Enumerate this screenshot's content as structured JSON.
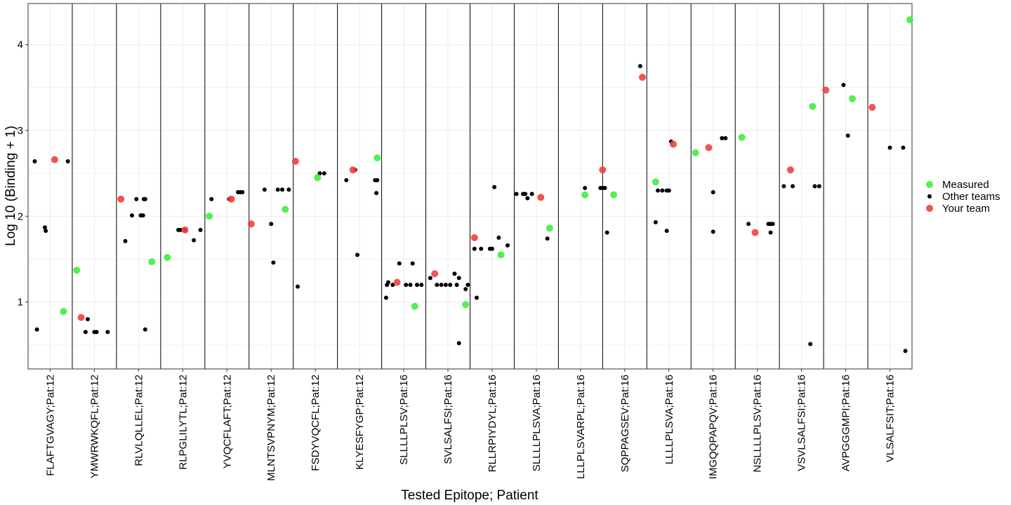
{
  "chart_data": {
    "type": "scatter",
    "xlabel": "Tested Epitope; Patient",
    "ylabel": "Log 10 (Binding + 1)",
    "ylim": [
      0.22,
      4.48
    ],
    "yticks": [
      1,
      2,
      3,
      4
    ],
    "grid": true,
    "legend_position": "right",
    "categories": [
      "FLAFTGVAGY;Pat:12",
      "YMWRWKQFL;Pat:12",
      "RLVLQLLEL;Pat:12",
      "RLPGLILYTL;Pat:12",
      "YVQCFLAFT;Pat:12",
      "MLNTSVPNYM;Pat:12",
      "FSDYVQCFL;Pat:12",
      "KLYESFYGP;Pat:12",
      "SLLLLPLSV;Pat:16",
      "SVLSALFSI;Pat:16",
      "RLLRPIYDYL;Pat:16",
      "SLLLLPLSVA;Pat:16",
      "LLLPLSVARPL;Pat:16",
      "SQPPAGSEV;Pat:16",
      "LLLLPLSVA;Pat:16",
      "IMGQQPAPQV;Pat:16",
      "NSLLLLPLSV;Pat:16",
      "VSVLSALFSI;Pat:16",
      "AVPGGGMPI;Pat:16",
      "VLSALFSIT;Pat:16"
    ],
    "series": [
      {
        "name": "Measured",
        "color": "#3DF03D",
        "points": [
          {
            "cat": 0,
            "dx": 0.3,
            "y": 0.89
          },
          {
            "cat": 1,
            "dx": -0.4,
            "y": 1.37
          },
          {
            "cat": 2,
            "dx": 0.3,
            "y": 1.47
          },
          {
            "cat": 3,
            "dx": -0.35,
            "y": 1.52
          },
          {
            "cat": 4,
            "dx": -0.4,
            "y": 2.0
          },
          {
            "cat": 5,
            "dx": 0.32,
            "y": 2.08
          },
          {
            "cat": 6,
            "dx": 0.05,
            "y": 2.45
          },
          {
            "cat": 7,
            "dx": 0.4,
            "y": 2.68
          },
          {
            "cat": 8,
            "dx": 0.25,
            "y": 0.95
          },
          {
            "cat": 9,
            "dx": 0.4,
            "y": 0.97
          },
          {
            "cat": 10,
            "dx": 0.2,
            "y": 1.55
          },
          {
            "cat": 11,
            "dx": 0.3,
            "y": 1.86
          },
          {
            "cat": 12,
            "dx": 0.1,
            "y": 2.25
          },
          {
            "cat": 13,
            "dx": -0.25,
            "y": 2.25
          },
          {
            "cat": 14,
            "dx": -0.3,
            "y": 2.4
          },
          {
            "cat": 15,
            "dx": -0.4,
            "y": 2.74
          },
          {
            "cat": 16,
            "dx": -0.35,
            "y": 2.92
          },
          {
            "cat": 17,
            "dx": 0.25,
            "y": 3.28
          },
          {
            "cat": 18,
            "dx": 0.15,
            "y": 3.37
          },
          {
            "cat": 19,
            "dx": 0.45,
            "y": 4.29
          }
        ]
      },
      {
        "name": "Other teams",
        "color": "#000000",
        "points": [
          {
            "cat": 0,
            "dx": -0.35,
            "y": 2.64
          },
          {
            "cat": 0,
            "dx": -0.12,
            "y": 1.87
          },
          {
            "cat": 0,
            "dx": -0.1,
            "y": 1.83
          },
          {
            "cat": 0,
            "dx": 0.4,
            "y": 2.64
          },
          {
            "cat": 0,
            "dx": -0.3,
            "y": 0.68
          },
          {
            "cat": 1,
            "dx": -0.2,
            "y": 0.65
          },
          {
            "cat": 1,
            "dx": 0.0,
            "y": 0.65
          },
          {
            "cat": 1,
            "dx": 0.05,
            "y": 0.65
          },
          {
            "cat": 1,
            "dx": -0.15,
            "y": 0.8
          },
          {
            "cat": 1,
            "dx": 0.3,
            "y": 0.65
          },
          {
            "cat": 2,
            "dx": -0.3,
            "y": 1.71
          },
          {
            "cat": 2,
            "dx": -0.15,
            "y": 2.01
          },
          {
            "cat": 2,
            "dx": -0.05,
            "y": 2.2
          },
          {
            "cat": 2,
            "dx": 0.05,
            "y": 2.01
          },
          {
            "cat": 2,
            "dx": 0.1,
            "y": 2.01
          },
          {
            "cat": 2,
            "dx": 0.12,
            "y": 2.2
          },
          {
            "cat": 2,
            "dx": 0.15,
            "y": 2.2
          },
          {
            "cat": 2,
            "dx": 0.15,
            "y": 0.68
          },
          {
            "cat": 3,
            "dx": -0.1,
            "y": 1.84
          },
          {
            "cat": 3,
            "dx": -0.05,
            "y": 1.84
          },
          {
            "cat": 3,
            "dx": 0.05,
            "y": 1.84
          },
          {
            "cat": 3,
            "dx": 0.25,
            "y": 1.72
          },
          {
            "cat": 3,
            "dx": 0.4,
            "y": 1.84
          },
          {
            "cat": 4,
            "dx": -0.35,
            "y": 2.2
          },
          {
            "cat": 4,
            "dx": 0.05,
            "y": 2.2
          },
          {
            "cat": 4,
            "dx": 0.25,
            "y": 2.28
          },
          {
            "cat": 4,
            "dx": 0.3,
            "y": 2.28
          },
          {
            "cat": 4,
            "dx": 0.35,
            "y": 2.28
          },
          {
            "cat": 5,
            "dx": -0.15,
            "y": 2.31
          },
          {
            "cat": 5,
            "dx": 0.0,
            "y": 1.91
          },
          {
            "cat": 5,
            "dx": 0.05,
            "y": 1.46
          },
          {
            "cat": 5,
            "dx": 0.15,
            "y": 2.31
          },
          {
            "cat": 5,
            "dx": 0.25,
            "y": 2.31
          },
          {
            "cat": 5,
            "dx": 0.4,
            "y": 2.31
          },
          {
            "cat": 6,
            "dx": -0.4,
            "y": 1.18
          },
          {
            "cat": 6,
            "dx": 0.1,
            "y": 2.5
          },
          {
            "cat": 6,
            "dx": 0.2,
            "y": 2.5
          },
          {
            "cat": 7,
            "dx": -0.3,
            "y": 2.42
          },
          {
            "cat": 7,
            "dx": -0.1,
            "y": 2.54
          },
          {
            "cat": 7,
            "dx": -0.05,
            "y": 1.55
          },
          {
            "cat": 7,
            "dx": 0.35,
            "y": 2.42
          },
          {
            "cat": 7,
            "dx": 0.38,
            "y": 2.27
          },
          {
            "cat": 7,
            "dx": 0.4,
            "y": 2.42
          },
          {
            "cat": 8,
            "dx": -0.4,
            "y": 1.05
          },
          {
            "cat": 8,
            "dx": -0.38,
            "y": 1.2
          },
          {
            "cat": 8,
            "dx": -0.35,
            "y": 1.23
          },
          {
            "cat": 8,
            "dx": -0.25,
            "y": 1.2
          },
          {
            "cat": 8,
            "dx": -0.1,
            "y": 1.45
          },
          {
            "cat": 8,
            "dx": 0.05,
            "y": 1.2
          },
          {
            "cat": 8,
            "dx": 0.15,
            "y": 1.2
          },
          {
            "cat": 8,
            "dx": 0.2,
            "y": 1.45
          },
          {
            "cat": 8,
            "dx": 0.3,
            "y": 1.2
          },
          {
            "cat": 8,
            "dx": 0.4,
            "y": 1.2
          },
          {
            "cat": 9,
            "dx": -0.4,
            "y": 1.28
          },
          {
            "cat": 9,
            "dx": -0.25,
            "y": 1.2
          },
          {
            "cat": 9,
            "dx": -0.15,
            "y": 1.2
          },
          {
            "cat": 9,
            "dx": -0.05,
            "y": 1.2
          },
          {
            "cat": 9,
            "dx": 0.05,
            "y": 1.2
          },
          {
            "cat": 9,
            "dx": 0.15,
            "y": 1.33
          },
          {
            "cat": 9,
            "dx": 0.2,
            "y": 1.2
          },
          {
            "cat": 9,
            "dx": 0.25,
            "y": 1.28
          },
          {
            "cat": 9,
            "dx": 0.25,
            "y": 0.52
          },
          {
            "cat": 9,
            "dx": 0.4,
            "y": 1.15
          },
          {
            "cat": 9,
            "dx": 0.45,
            "y": 1.2
          },
          {
            "cat": 10,
            "dx": -0.4,
            "y": 1.62
          },
          {
            "cat": 10,
            "dx": -0.35,
            "y": 1.05
          },
          {
            "cat": 10,
            "dx": -0.25,
            "y": 1.62
          },
          {
            "cat": 10,
            "dx": -0.05,
            "y": 1.62
          },
          {
            "cat": 10,
            "dx": 0.0,
            "y": 1.62
          },
          {
            "cat": 10,
            "dx": 0.05,
            "y": 2.34
          },
          {
            "cat": 10,
            "dx": 0.15,
            "y": 1.75
          },
          {
            "cat": 10,
            "dx": 0.35,
            "y": 1.66
          },
          {
            "cat": 11,
            "dx": -0.45,
            "y": 2.26
          },
          {
            "cat": 11,
            "dx": -0.3,
            "y": 2.26
          },
          {
            "cat": 11,
            "dx": -0.25,
            "y": 2.26
          },
          {
            "cat": 11,
            "dx": -0.2,
            "y": 2.21
          },
          {
            "cat": 11,
            "dx": -0.1,
            "y": 2.26
          },
          {
            "cat": 11,
            "dx": 0.25,
            "y": 1.74
          },
          {
            "cat": 12,
            "dx": 0.1,
            "y": 2.33
          },
          {
            "cat": 12,
            "dx": 0.45,
            "y": 2.33
          },
          {
            "cat": 12,
            "dx": 0.5,
            "y": 2.33
          },
          {
            "cat": 12,
            "dx": 0.55,
            "y": 2.33
          },
          {
            "cat": 12,
            "dx": 0.6,
            "y": 1.81
          },
          {
            "cat": 13,
            "dx": 0.35,
            "y": 3.75
          },
          {
            "cat": 14,
            "dx": -0.3,
            "y": 1.93
          },
          {
            "cat": 14,
            "dx": -0.25,
            "y": 2.3
          },
          {
            "cat": 14,
            "dx": -0.15,
            "y": 2.3
          },
          {
            "cat": 14,
            "dx": -0.05,
            "y": 2.3
          },
          {
            "cat": 14,
            "dx": -0.05,
            "y": 1.83
          },
          {
            "cat": 14,
            "dx": 0.0,
            "y": 2.3
          },
          {
            "cat": 14,
            "dx": 0.05,
            "y": 2.87
          },
          {
            "cat": 15,
            "dx": 0.0,
            "y": 2.28
          },
          {
            "cat": 15,
            "dx": 0.0,
            "y": 1.82
          },
          {
            "cat": 15,
            "dx": 0.2,
            "y": 2.91
          },
          {
            "cat": 15,
            "dx": 0.28,
            "y": 2.91
          },
          {
            "cat": 16,
            "dx": -0.2,
            "y": 1.91
          },
          {
            "cat": 16,
            "dx": 0.25,
            "y": 1.91
          },
          {
            "cat": 16,
            "dx": 0.3,
            "y": 1.91
          },
          {
            "cat": 16,
            "dx": 0.3,
            "y": 1.81
          },
          {
            "cat": 16,
            "dx": 0.35,
            "y": 1.91
          },
          {
            "cat": 17,
            "dx": -0.4,
            "y": 2.35
          },
          {
            "cat": 17,
            "dx": -0.2,
            "y": 2.35
          },
          {
            "cat": 17,
            "dx": 0.2,
            "y": 0.51
          },
          {
            "cat": 17,
            "dx": 0.3,
            "y": 2.35
          },
          {
            "cat": 17,
            "dx": 0.4,
            "y": 2.35
          },
          {
            "cat": 18,
            "dx": -0.05,
            "y": 3.53
          },
          {
            "cat": 18,
            "dx": 0.05,
            "y": 2.94
          },
          {
            "cat": 19,
            "dx": 0.0,
            "y": 2.8
          },
          {
            "cat": 19,
            "dx": 0.3,
            "y": 2.8
          },
          {
            "cat": 19,
            "dx": 0.35,
            "y": 0.43
          }
        ]
      },
      {
        "name": "Your team",
        "color": "#F04040",
        "points": [
          {
            "cat": 0,
            "dx": 0.1,
            "y": 2.66
          },
          {
            "cat": 1,
            "dx": -0.3,
            "y": 0.82
          },
          {
            "cat": 2,
            "dx": -0.4,
            "y": 2.2
          },
          {
            "cat": 3,
            "dx": 0.05,
            "y": 1.84
          },
          {
            "cat": 4,
            "dx": 0.1,
            "y": 2.2
          },
          {
            "cat": 5,
            "dx": -0.45,
            "y": 1.91
          },
          {
            "cat": 6,
            "dx": -0.45,
            "y": 2.64
          },
          {
            "cat": 7,
            "dx": -0.15,
            "y": 2.54
          },
          {
            "cat": 8,
            "dx": -0.15,
            "y": 1.23
          },
          {
            "cat": 9,
            "dx": -0.3,
            "y": 1.33
          },
          {
            "cat": 10,
            "dx": -0.4,
            "y": 1.75
          },
          {
            "cat": 11,
            "dx": 0.1,
            "y": 2.22
          },
          {
            "cat": 12,
            "dx": 0.5,
            "y": 2.54
          },
          {
            "cat": 13,
            "dx": 0.4,
            "y": 3.62
          },
          {
            "cat": 14,
            "dx": 0.1,
            "y": 2.84
          },
          {
            "cat": 15,
            "dx": -0.1,
            "y": 2.8
          },
          {
            "cat": 16,
            "dx": -0.05,
            "y": 1.81
          },
          {
            "cat": 17,
            "dx": -0.25,
            "y": 2.54
          },
          {
            "cat": 18,
            "dx": -0.45,
            "y": 3.47
          },
          {
            "cat": 19,
            "dx": -0.4,
            "y": 3.27
          }
        ]
      }
    ]
  }
}
